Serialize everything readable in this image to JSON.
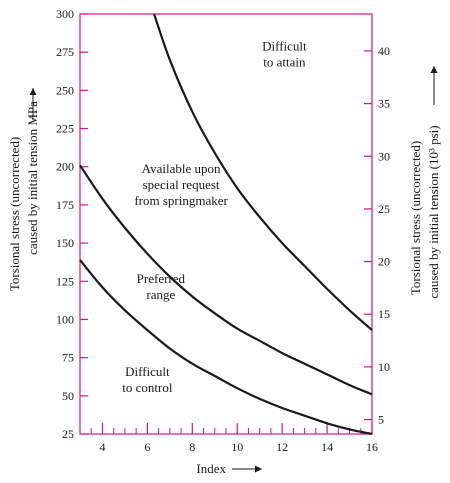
{
  "chart_data": {
    "type": "line",
    "x_axis": {
      "label": "Index",
      "range": [
        3,
        16
      ],
      "tick_labels": [
        "4",
        "6",
        "8",
        "10",
        "12",
        "14",
        "16"
      ],
      "tick_values": [
        4,
        6,
        8,
        10,
        12,
        14,
        16
      ],
      "minor_ticks": [
        3,
        3.5,
        4.5,
        5,
        5.5,
        6.5,
        7,
        7.5,
        8.5,
        9,
        9.5,
        10.5,
        11,
        11.5,
        12.5,
        13,
        13.5,
        14.5,
        15,
        15.5
      ]
    },
    "y_axis_left": {
      "label_line1": "Torsional stress (uncorrected)",
      "label_line2": "caused by initial tension MPa",
      "range": [
        25,
        300
      ],
      "ticks": [
        25,
        50,
        75,
        100,
        125,
        150,
        175,
        200,
        225,
        250,
        275,
        300
      ]
    },
    "y_axis_right": {
      "label_line1": "Torsional stress (uncorrected)",
      "label_line2": "caused by initial tension (10³ psi)",
      "ticks": [
        5,
        10,
        15,
        20,
        25,
        30,
        35,
        40
      ],
      "psi_per_ksi_in_mpa": 6.895
    },
    "series": [
      {
        "x": [
          3,
          4,
          5,
          6,
          7,
          8,
          9,
          10,
          11,
          12,
          13,
          14,
          15,
          16
        ],
        "y": [
          139,
          121,
          106,
          93,
          81,
          71,
          63,
          55,
          48,
          42,
          37,
          32,
          28,
          25
        ]
      },
      {
        "x": [
          3,
          4,
          5,
          6,
          7,
          8,
          9,
          10,
          11,
          12,
          13,
          14,
          15,
          16
        ],
        "y": [
          201,
          179,
          160,
          143,
          128,
          115,
          104,
          94,
          86,
          78,
          71,
          64,
          57,
          51
        ]
      },
      {
        "x": [
          6.3,
          7,
          8,
          9,
          10,
          11,
          12,
          13,
          14,
          15,
          16
        ],
        "y": [
          300,
          270,
          236,
          209,
          186,
          167,
          150,
          135,
          120,
          106,
          93
        ]
      }
    ],
    "annotations": [
      {
        "text_lines": [
          "Difficult",
          "to attain"
        ],
        "x": 12.1,
        "y": 276
      },
      {
        "text_lines": [
          "Available upon",
          "special request",
          "from springmaker"
        ],
        "x": 7.5,
        "y": 196
      },
      {
        "text_lines": [
          "Preferred",
          "range"
        ],
        "x": 6.6,
        "y": 124
      },
      {
        "text_lines": [
          "Difficult",
          "to control"
        ],
        "x": 6.0,
        "y": 63
      }
    ]
  },
  "colors": {
    "frame": "#d4168a",
    "curve": "#1a1a1a",
    "text": "#1a1a1a"
  }
}
